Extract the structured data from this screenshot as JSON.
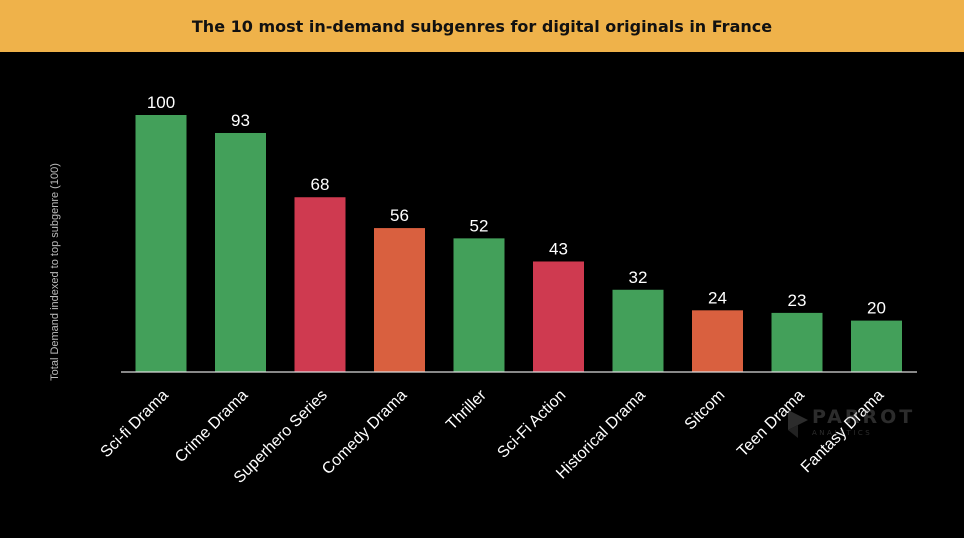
{
  "title": "The 10 most in-demand subgenres for digital originals in France",
  "watermark": {
    "name": "PARROT",
    "sub": "ANALYTICS"
  },
  "colors": {
    "green": "#43a05a",
    "red": "#cf3a50",
    "orange": "#d9603f",
    "title_bg": "#efb24a",
    "background": "#000000"
  },
  "chart_data": {
    "type": "bar",
    "title": "The 10 most in-demand subgenres for digital originals in France",
    "xlabel": "",
    "ylabel": "Total Demand indexed to top subgenre (100)",
    "ylim": [
      0,
      100
    ],
    "grid": false,
    "legend": "none",
    "categories": [
      "Sci-fi Drama",
      "Crime Drama",
      "Superhero Series",
      "Comedy Drama",
      "Thriller",
      "Sci-Fi Action",
      "Historical Drama",
      "Sitcom",
      "Teen Drama",
      "Fantasy Drama"
    ],
    "values": [
      100,
      93,
      68,
      56,
      52,
      43,
      32,
      24,
      23,
      20
    ],
    "bar_colors": [
      "#43a05a",
      "#43a05a",
      "#cf3a50",
      "#d9603f",
      "#43a05a",
      "#cf3a50",
      "#43a05a",
      "#d9603f",
      "#43a05a",
      "#43a05a"
    ],
    "data_labels": [
      "100",
      "93",
      "68",
      "56",
      "52",
      "43",
      "32",
      "24",
      "23",
      "20"
    ]
  }
}
